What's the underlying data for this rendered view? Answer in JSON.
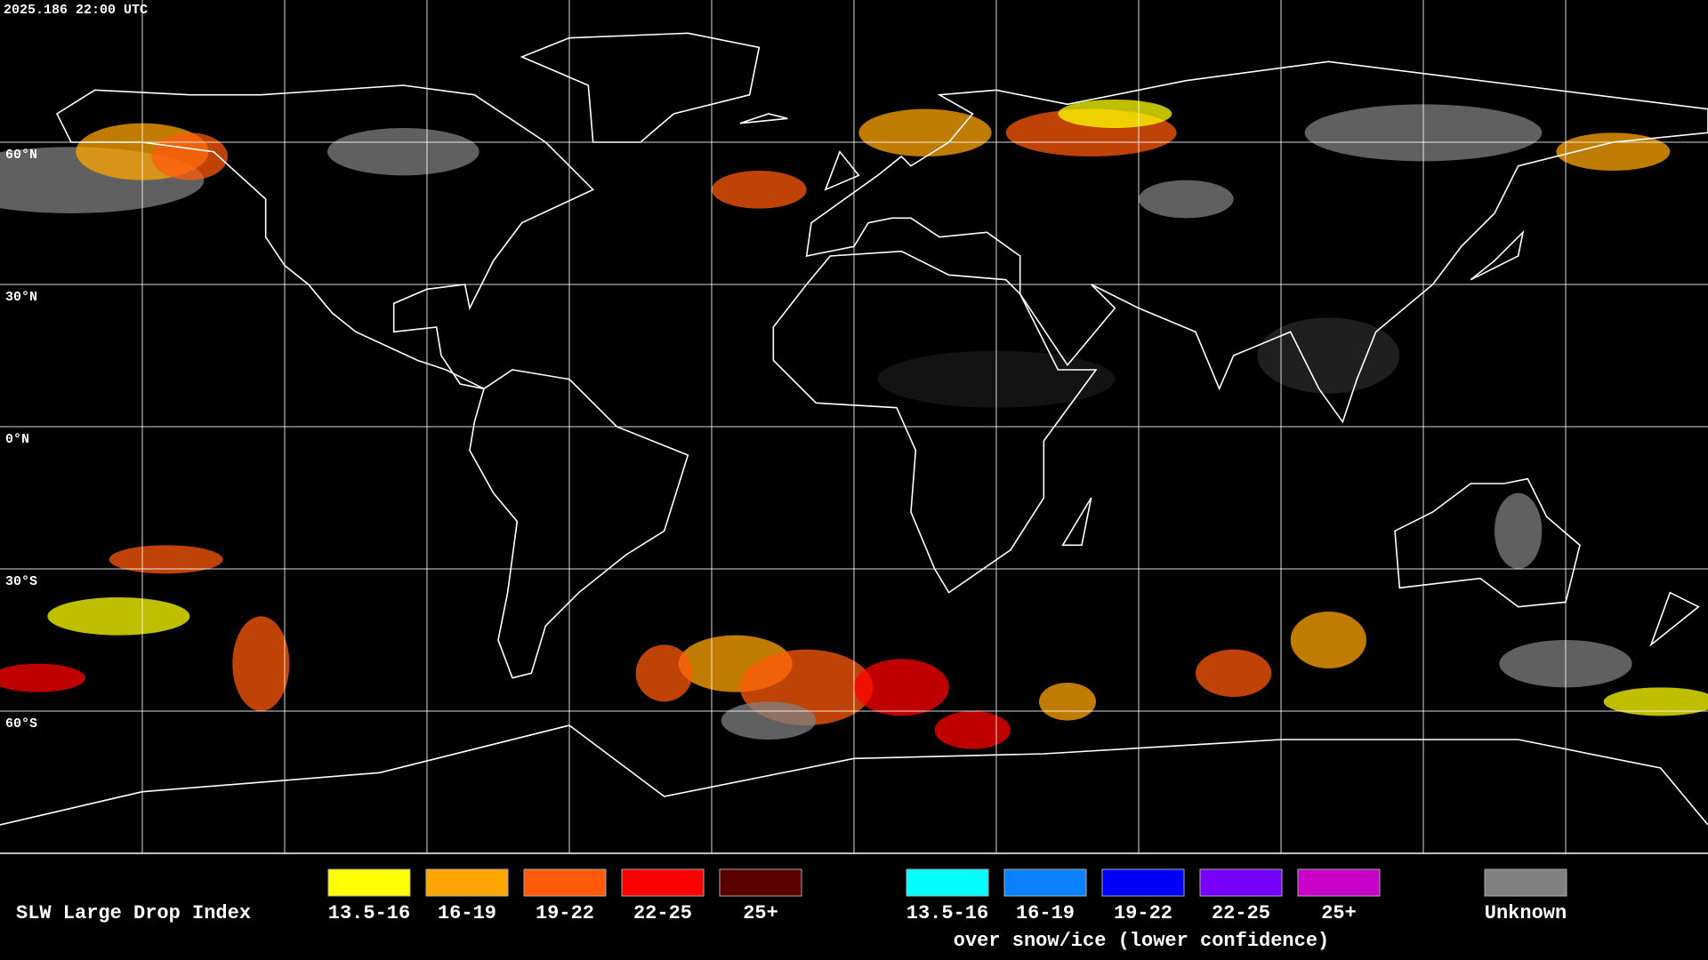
{
  "header": {
    "timestamp": "2025.186 22:00 UTC"
  },
  "map": {
    "latitude_labels": [
      "60°N",
      "30°N",
      "0°N",
      "30°S",
      "60°S"
    ]
  },
  "legend": {
    "title": "SLW Large Drop Index",
    "groups": [
      {
        "items": [
          {
            "label": "13.5-16",
            "color": "#ffff00"
          },
          {
            "label": "16-19",
            "color": "#ffa500"
          },
          {
            "label": "19-22",
            "color": "#ff5a0a"
          },
          {
            "label": "22-25",
            "color": "#ff0000"
          },
          {
            "label": "25+",
            "color": "#5a0000"
          }
        ]
      },
      {
        "items": [
          {
            "label": "13.5-16",
            "color": "#00ffff"
          },
          {
            "label": "16-19",
            "color": "#0a82ff"
          },
          {
            "label": "19-22",
            "color": "#0000ff"
          },
          {
            "label": "22-25",
            "color": "#7800ff"
          },
          {
            "label": "25+",
            "color": "#c800c8"
          }
        ],
        "note": "over snow/ice (lower confidence)"
      }
    ],
    "unknown": {
      "label": "Unknown",
      "color": "#808080"
    }
  }
}
